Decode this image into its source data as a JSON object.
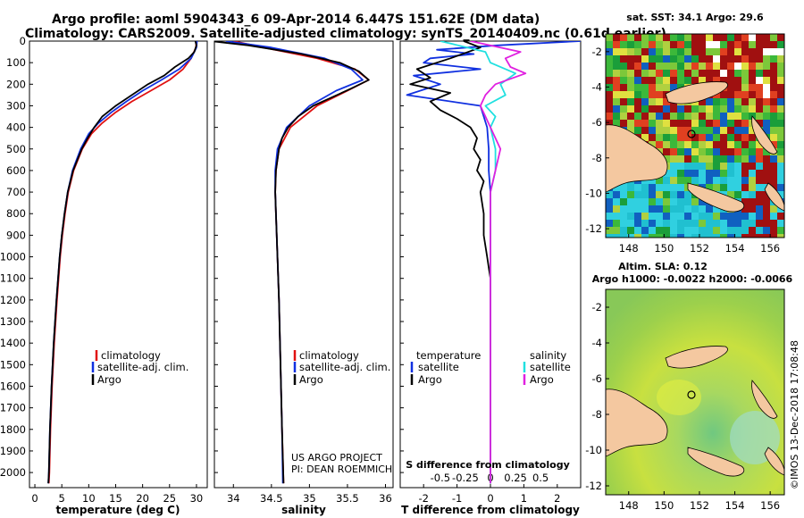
{
  "header": {
    "title_line1": "Argo profile: aoml 5904343_6 09-Apr-2014 6.447S 151.62E (DM data)",
    "title_line2": "Climatology: CARS2009. Satellite-adjusted climatology: synTS_20140409.nc (0.61d earlier)"
  },
  "colors": {
    "climatology": "#e01010",
    "satellite": "#1030e0",
    "argo": "#000000",
    "salinity_sat": "#20e0e0",
    "salinity_argo": "#e020e0",
    "land": "#f4c8a0"
  },
  "chart_data": [
    {
      "type": "line",
      "id": "temperature",
      "xlabel": "temperature (deg C)",
      "ylabel": "",
      "xlim": [
        -1,
        32
      ],
      "ylim": [
        2070,
        0
      ],
      "xticks": [
        "0",
        "5",
        "10",
        "15",
        "20",
        "25",
        "30"
      ],
      "yticks": [
        "0",
        "100",
        "200",
        "300",
        "400",
        "500",
        "600",
        "700",
        "800",
        "900",
        "1000",
        "1100",
        "1200",
        "1300",
        "1400",
        "1500",
        "1600",
        "1700",
        "1800",
        "1900",
        "2000"
      ],
      "legend": [
        "climatology",
        "satellite-adj. clim.",
        "Argo"
      ],
      "series": [
        {
          "name": "climatology",
          "color": "#e01010",
          "depth": [
            0,
            30,
            80,
            130,
            180,
            230,
            280,
            330,
            380,
            430,
            500,
            600,
            700,
            800,
            900,
            1000,
            1200,
            1400,
            1600,
            1800,
            2000,
            2050
          ],
          "values": [
            30.0,
            29.9,
            29.0,
            27.5,
            25.0,
            21.5,
            18.0,
            15.0,
            12.5,
            10.5,
            8.8,
            7.2,
            6.2,
            5.6,
            5.1,
            4.7,
            4.1,
            3.6,
            3.2,
            2.9,
            2.7,
            2.6
          ]
        },
        {
          "name": "satellite-adj. clim.",
          "color": "#1030e0",
          "depth": [
            0,
            30,
            80,
            130,
            180,
            230,
            280,
            330,
            380,
            430,
            500,
            600,
            700,
            800,
            900,
            1000,
            1200,
            1400,
            1600,
            1800,
            2000,
            2050
          ],
          "values": [
            30.1,
            30.0,
            29.0,
            26.8,
            23.5,
            20.0,
            17.0,
            14.2,
            11.8,
            10.0,
            8.5,
            7.0,
            6.1,
            5.5,
            5.0,
            4.6,
            4.0,
            3.5,
            3.1,
            2.8,
            2.6,
            2.5
          ]
        },
        {
          "name": "Argo",
          "color": "#000000",
          "depth": [
            0,
            20,
            50,
            80,
            120,
            160,
            200,
            250,
            300,
            350,
            400,
            450,
            500,
            600,
            700,
            800,
            900,
            1000,
            1200,
            1400,
            1600,
            1800,
            2000,
            2050
          ],
          "values": [
            29.8,
            30.0,
            29.6,
            28.5,
            26.0,
            24.0,
            21.0,
            18.0,
            15.0,
            12.5,
            11.0,
            9.8,
            8.7,
            7.1,
            6.1,
            5.5,
            5.0,
            4.6,
            4.0,
            3.5,
            3.1,
            2.8,
            2.6,
            2.5
          ]
        }
      ]
    },
    {
      "type": "line",
      "id": "salinity",
      "xlabel": "salinity",
      "ylabel": "",
      "xlim": [
        33.75,
        36.1
      ],
      "ylim": [
        2070,
        0
      ],
      "xticks": [
        "34",
        "34.5",
        "35",
        "35.5",
        "36"
      ],
      "legend": [
        "climatology",
        "satellite-adj. clim.",
        "Argo"
      ],
      "series": [
        {
          "name": "climatology",
          "color": "#e01010",
          "depth": [
            0,
            30,
            80,
            130,
            180,
            230,
            300,
            400,
            500,
            600,
            700,
            800,
            1000,
            1200,
            1500,
            1800,
            2050
          ],
          "values": [
            34.0,
            34.4,
            35.1,
            35.6,
            35.78,
            35.5,
            35.1,
            34.75,
            34.6,
            34.56,
            34.55,
            34.56,
            34.58,
            34.6,
            34.62,
            34.64,
            34.66
          ]
        },
        {
          "name": "satellite-adj. clim.",
          "color": "#1030e0",
          "depth": [
            0,
            30,
            80,
            130,
            180,
            230,
            300,
            400,
            500,
            600,
            700,
            800,
            1000,
            1200,
            1500,
            1800,
            2050
          ],
          "values": [
            33.9,
            34.5,
            35.2,
            35.55,
            35.7,
            35.35,
            35.0,
            34.7,
            34.58,
            34.55,
            34.55,
            34.56,
            34.58,
            34.6,
            34.62,
            34.64,
            34.65
          ]
        },
        {
          "name": "Argo",
          "color": "#000000",
          "depth": [
            0,
            20,
            60,
            100,
            140,
            180,
            220,
            260,
            300,
            350,
            400,
            450,
            500,
            600,
            700,
            800,
            1000,
            1200,
            1500,
            1800,
            2050
          ],
          "values": [
            33.7,
            34.2,
            34.9,
            35.4,
            35.65,
            35.78,
            35.55,
            35.3,
            35.05,
            34.85,
            34.72,
            34.64,
            34.6,
            34.56,
            34.55,
            34.56,
            34.58,
            34.6,
            34.62,
            34.64,
            34.66
          ]
        }
      ]
    },
    {
      "type": "line",
      "id": "difference",
      "xlabel": "T difference from climatology",
      "ylabel": "",
      "xlim": [
        -2.7,
        2.7
      ],
      "ylim": [
        2070,
        0
      ],
      "xticks": [
        "-2",
        "-1",
        "0",
        "1",
        "2"
      ],
      "s_axis_label": "S difference from climatology",
      "s_xticks": [
        "-0.5",
        "-0.25",
        "0",
        "0.25",
        "0.5"
      ],
      "legend_left_title": "temperature",
      "legend_right_title": "salinity",
      "legend_entries": [
        "satellite",
        "Argo"
      ],
      "series": [
        {
          "name": "T satellite",
          "color": "#1030e0",
          "depth": [
            0,
            20,
            40,
            60,
            80,
            100,
            130,
            160,
            200,
            250,
            300,
            400,
            500,
            600,
            700,
            800,
            900,
            1000,
            1200,
            1400,
            1600,
            1800,
            2050
          ],
          "values": [
            2.7,
            0.2,
            -1.6,
            -0.5,
            -1.8,
            -2.0,
            -0.3,
            -2.3,
            -1.5,
            -2.5,
            -0.3,
            -0.1,
            -0.05,
            -0.05,
            0.0,
            0.0,
            0.0,
            0.0,
            0.0,
            0.0,
            0.0,
            0.0,
            0.0
          ]
        },
        {
          "name": "T Argo",
          "color": "#000000",
          "depth": [
            0,
            30,
            80,
            130,
            170,
            200,
            240,
            280,
            320,
            360,
            400,
            450,
            500,
            550,
            600,
            650,
            700,
            800,
            900,
            1000,
            1050,
            1100,
            1200,
            1400,
            1600,
            1800,
            2050
          ],
          "values": [
            -0.8,
            -0.3,
            -1.2,
            -2.2,
            -1.8,
            -2.4,
            -1.2,
            -1.8,
            -1.5,
            -1.0,
            -0.6,
            -0.4,
            -0.5,
            -0.3,
            -0.4,
            -0.2,
            -0.3,
            -0.2,
            -0.2,
            -0.1,
            -0.05,
            0.0,
            0.0,
            0.0,
            0.0,
            0.0,
            0.0
          ]
        },
        {
          "name": "S satellite",
          "color": "#20e0e0",
          "depth": [
            0,
            50,
            100,
            150,
            200,
            250,
            300,
            350,
            400,
            500,
            600,
            700,
            800,
            1000,
            1200,
            1400,
            1600,
            1800,
            2050
          ],
          "values": [
            -0.5,
            -0.05,
            0.0,
            0.25,
            0.1,
            0.15,
            -0.05,
            0.05,
            0.0,
            0.05,
            0.05,
            0.0,
            0.0,
            0.0,
            0.0,
            0.0,
            0.0,
            0.0,
            0.0
          ]
        },
        {
          "name": "S Argo",
          "color": "#e020e0",
          "depth": [
            0,
            50,
            80,
            120,
            150,
            200,
            250,
            300,
            350,
            400,
            500,
            600,
            700,
            800,
            1000,
            1200,
            1400,
            1600,
            1800,
            2050
          ],
          "values": [
            -0.2,
            0.3,
            0.15,
            0.2,
            0.35,
            0.05,
            -0.05,
            -0.1,
            -0.05,
            0.0,
            0.1,
            0.05,
            0.0,
            0.0,
            0.0,
            0.0,
            0.0,
            0.0,
            0.0,
            0.0
          ]
        }
      ]
    }
  ],
  "maps": {
    "sst": {
      "title": "sat. SST: 34.1  Argo: 29.6",
      "x_ticks": [
        "148",
        "150",
        "152",
        "154",
        "156"
      ],
      "y_ticks": [
        "-2",
        "-4",
        "-6",
        "-8",
        "-10",
        "-12"
      ]
    },
    "sla": {
      "title1": "Altim. SLA: 0.12",
      "title2": "Argo h1000: -0.0022 h2000: -0.0066",
      "x_ticks": [
        "148",
        "150",
        "152",
        "154",
        "156"
      ],
      "y_ticks": [
        "-2",
        "-4",
        "-6",
        "-8",
        "-10",
        "-12"
      ]
    }
  },
  "credits": {
    "project": "US ARGO PROJECT",
    "pi": "PI: DEAN ROEMMICH",
    "imos": "©IMOS 13-Dec-2018 17:08:48"
  }
}
